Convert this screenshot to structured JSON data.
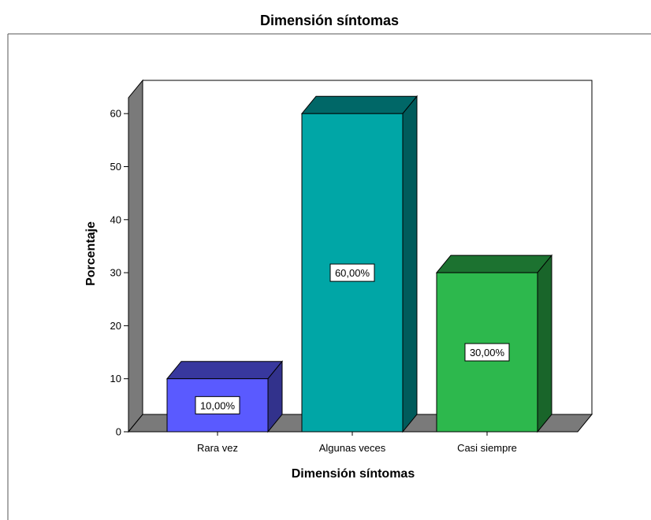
{
  "chart_data": {
    "type": "bar",
    "title": "Dimensión síntomas",
    "xlabel": "Dimensión síntomas",
    "ylabel": "Porcentaje",
    "categories": [
      "Rara vez",
      "Algunas veces",
      "Casi siempre"
    ],
    "values": [
      10,
      60,
      30
    ],
    "data_labels": [
      "10,00%",
      "60,00%",
      "30,00%"
    ],
    "ylim": [
      0,
      63
    ],
    "yticks": [
      0,
      10,
      20,
      30,
      40,
      50,
      60
    ],
    "grid": false,
    "legend": "none",
    "style": "3d",
    "colors": {
      "bars": [
        "#5a5aff",
        "#00a6a6",
        "#2db84d"
      ],
      "walls": "#7a7a7a"
    }
  }
}
